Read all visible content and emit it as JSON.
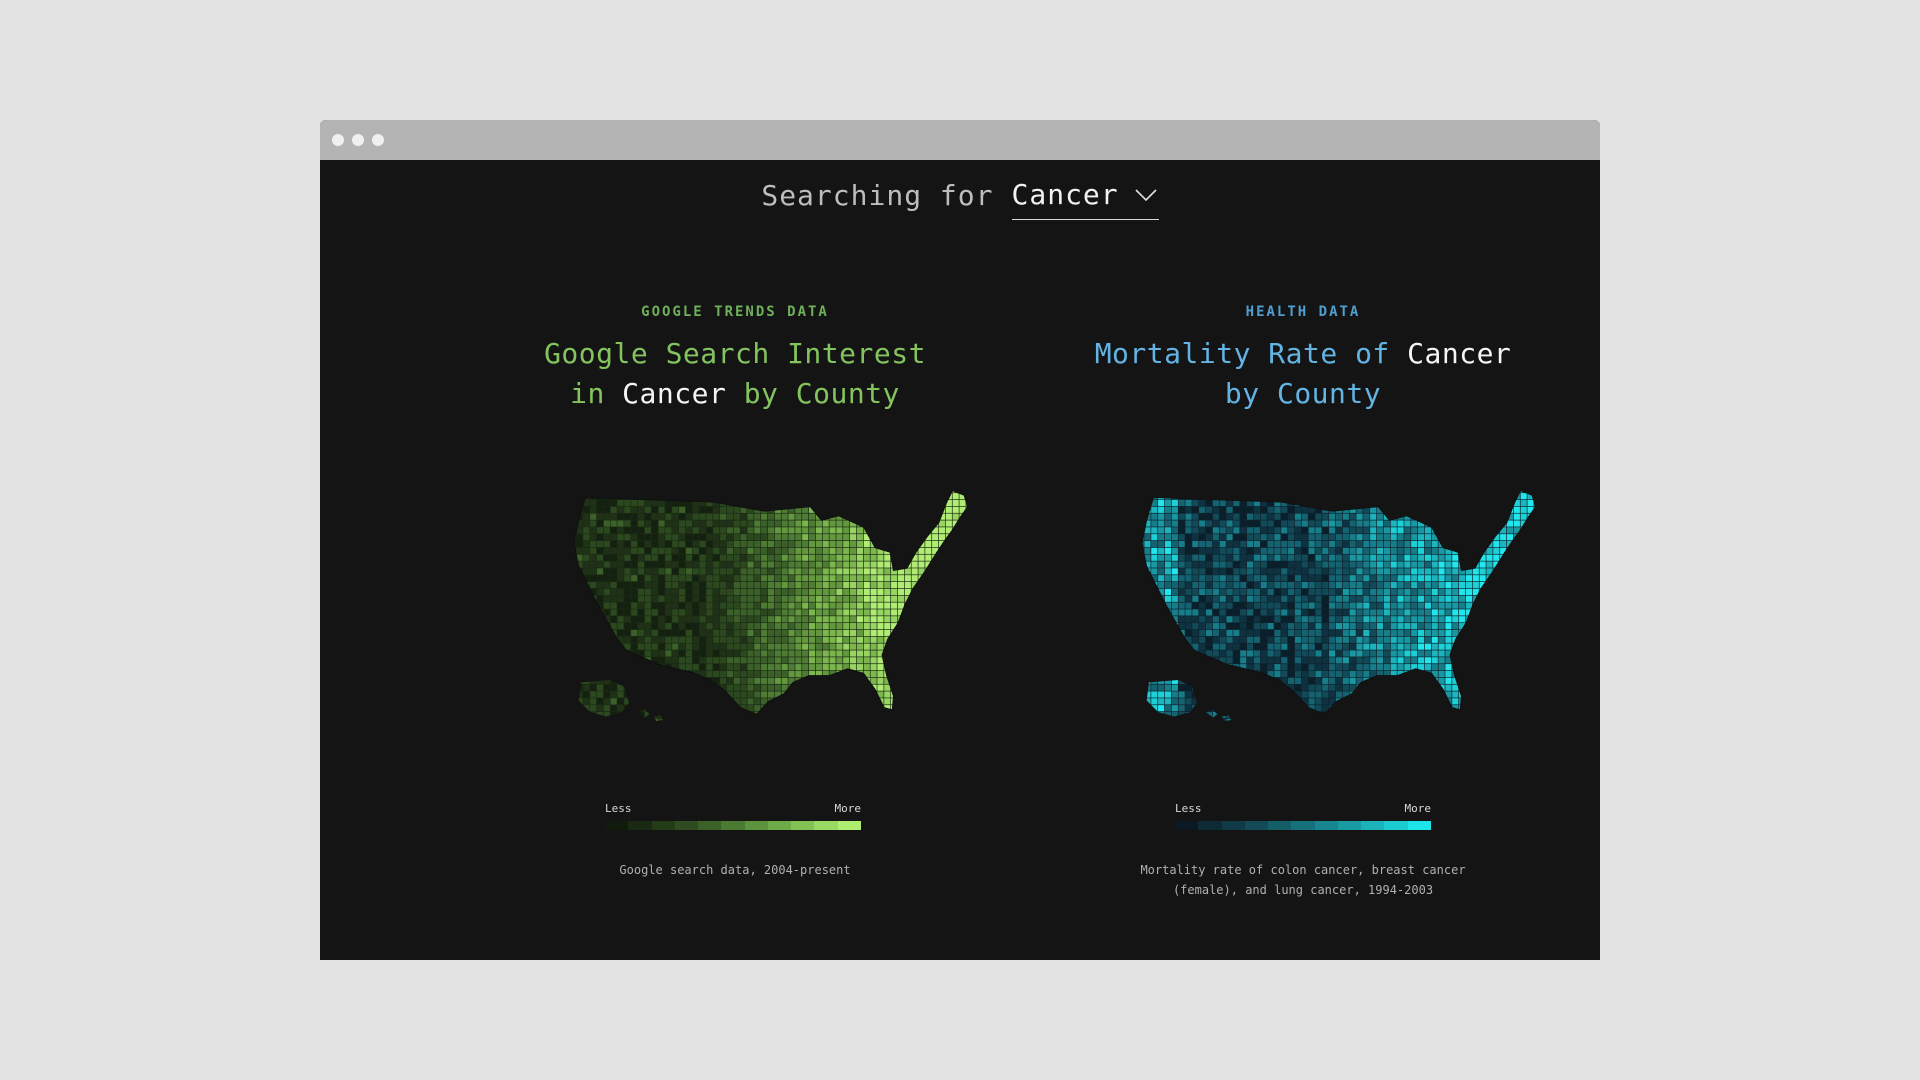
{
  "search": {
    "prefix": "Searching for",
    "selected": "Cancer"
  },
  "left": {
    "eyebrow": "GOOGLE TRENDS DATA",
    "headline": {
      "a": "Google Search Interest",
      "b": "in",
      "term": "Cancer",
      "c": "by County"
    },
    "legend": {
      "less": "Less",
      "more": "More",
      "colors": [
        "#111a0d",
        "#1a2913",
        "#243b18",
        "#2e4c1f",
        "#3b6128",
        "#4b7a33",
        "#5c933d",
        "#6eaa48",
        "#82c254",
        "#98d962",
        "#aeed70"
      ]
    },
    "source": "Google search data, 2004-present",
    "map": {
      "fill": "#1a2a13",
      "ramp": [
        "#152110",
        "#1f3217",
        "#2c481f",
        "#3b6029",
        "#4e7c35",
        "#64983f",
        "#7cb74d",
        "#98d462",
        "#b0ec73"
      ]
    }
  },
  "right": {
    "eyebrow": "HEALTH DATA",
    "headline": {
      "a": "Mortality Rate of",
      "term": "Cancer",
      "c": "by County"
    },
    "legend": {
      "less": "Less",
      "more": "More",
      "colors": [
        "#0b1a22",
        "#0e2a35",
        "#103a45",
        "#124b56",
        "#145e68",
        "#15727c",
        "#178690",
        "#199ba4",
        "#1bb2ba",
        "#1ccad1",
        "#1de4ea"
      ]
    },
    "source": {
      "line1": "Mortality rate of colon cancer, breast cancer",
      "line2": "(female), and lung cancer, 1994-2003"
    },
    "map": {
      "fill": "#0c2430",
      "ramp": [
        "#0b1f2a",
        "#0f3240",
        "#124a58",
        "#156370",
        "#177d88",
        "#1a98a2",
        "#1cb4bd",
        "#1dd0d6",
        "#22e6ec"
      ]
    }
  }
}
